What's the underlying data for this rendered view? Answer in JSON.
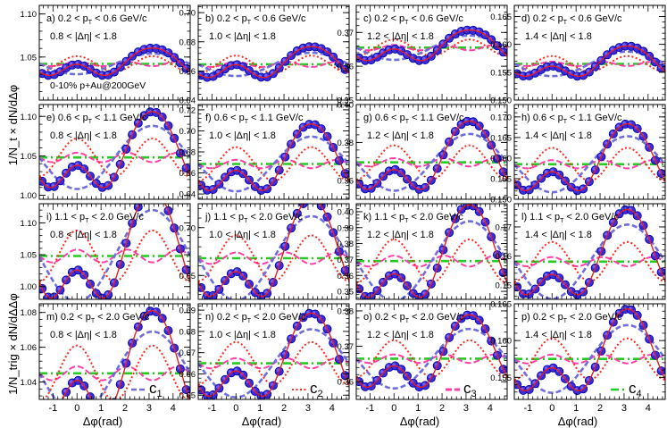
{
  "figure": {
    "ylabel_top": "1/N_t × dN/dΔφ",
    "ylabel_bottom": "1/N_trig × dN/dΔΔφ",
    "xlabel": "Δφ(rad)",
    "system_label": "0-10% p+Au@200GeV",
    "xticks": [
      -1,
      0,
      1,
      2,
      3,
      4
    ],
    "legend": [
      "c1",
      "c2",
      "c3",
      "c4"
    ],
    "colors": {
      "data": "#3a2cd6",
      "data_edge": "#0000aa",
      "data_fill_hi": "#6e63ff",
      "fit_total": "#ee1c1c",
      "c1": "#6f6ddc",
      "c2": "#ff2a1c",
      "c3": "#ff3ea8",
      "c4": "#22cc22"
    }
  },
  "chart_data": {
    "type": "scatter",
    "x_range": [
      -1.5708,
      4.7124
    ],
    "x": [
      -1.45,
      -1.2,
      -0.95,
      -0.7,
      -0.45,
      -0.2,
      0.05,
      0.3,
      0.55,
      0.8,
      1.05,
      1.3,
      1.55,
      1.8,
      2.05,
      2.3,
      2.55,
      2.8,
      3.05,
      3.3,
      3.55,
      3.8,
      4.05,
      4.3,
      4.55
    ],
    "rows": [
      {
        "pt_label": "0.2 < pT < 0.6 GeV/c"
      },
      {
        "pt_label": "0.6 < pT < 1.1 GeV/c"
      },
      {
        "pt_label": "1.1 < pT < 2.0 GeV/c"
      },
      {
        "pt_label": "0.2 < pT < 2.0 GeV/c"
      }
    ],
    "eta_labels": [
      "0.8 < |Δη| < 1.8",
      "1.0 < |Δη| < 1.8",
      "1.2 < |Δη| < 1.8",
      "1.4 < |Δη| < 1.8"
    ],
    "panels": [
      {
        "id": "a",
        "prefix": "a)",
        "pt_lo": "0.2",
        "pt_hi": "0.6",
        "eta": "0.8 < |Δη| < 1.8",
        "ylim": [
          1.0,
          1.11
        ],
        "yticks": [
          1.05,
          1.1
        ],
        "ytick_labels": [
          "1.05",
          "1.10"
        ],
        "b0": 1.042,
        "c1": -0.006,
        "c2": 0.0045,
        "c3": 0.0013
      },
      {
        "id": "b",
        "prefix": "b)",
        "pt_lo": "0.2",
        "pt_hi": "0.6",
        "eta": "1.0 < |Δη| < 1.8",
        "ylim": [
          0.64,
          0.705
        ],
        "yticks": [
          0.64,
          0.66,
          0.68,
          0.7
        ],
        "ytick_labels": [
          "0.64",
          "0.66",
          "0.68",
          "0.70"
        ],
        "b0": 0.6645,
        "c1": -0.004,
        "c2": 0.003,
        "c3": 0.0009
      },
      {
        "id": "c",
        "prefix": "c)",
        "pt_lo": "0.2",
        "pt_hi": "0.6",
        "eta": "1.2 < |Δη| < 1.8",
        "ylim": [
          0.35,
          0.378
        ],
        "yticks": [
          0.35,
          0.36,
          0.37
        ],
        "ytick_labels": [
          "0.35",
          "0.36",
          "0.37"
        ],
        "b0": 0.3655,
        "c1": -0.0018,
        "c2": 0.0012,
        "c3": 0.0004
      },
      {
        "id": "d",
        "prefix": "d)",
        "pt_lo": "0.2",
        "pt_hi": "0.6",
        "eta": "1.4 < |Δη| < 1.8",
        "ylim": [
          0.15,
          0.167
        ],
        "yticks": [
          0.15,
          0.155,
          0.16,
          0.165
        ],
        "ytick_labels": [
          "0.150",
          "0.155",
          "0.160",
          "0.165"
        ],
        "b0": 0.1565,
        "c1": -0.0011,
        "c2": 0.0007,
        "c3": 0.0002
      },
      {
        "id": "e",
        "prefix": "e)",
        "pt_lo": "0.6",
        "pt_hi": "1.1",
        "eta": "0.8 < |Δη| < 1.8",
        "ylim": [
          0.995,
          1.115
        ],
        "yticks": [
          1.0,
          1.05,
          1.1
        ],
        "ytick_labels": [
          "1.00",
          "1.05",
          "1.10"
        ],
        "b0": 1.048,
        "c1": -0.02,
        "c2": 0.012,
        "c3": 0.003
      },
      {
        "id": "f",
        "prefix": "f)",
        "pt_lo": "0.6",
        "pt_hi": "1.1",
        "eta": "1.0 < |Δη| < 1.8",
        "ylim": [
          0.635,
          0.725
        ],
        "yticks": [
          0.64,
          0.66,
          0.68,
          0.7,
          0.72
        ],
        "ytick_labels": [
          "0.64",
          "0.66",
          "0.68",
          "0.70",
          "0.72"
        ],
        "b0": 0.6685,
        "c1": -0.013,
        "c2": 0.008,
        "c3": 0.002
      },
      {
        "id": "g",
        "prefix": "g)",
        "pt_lo": "0.6",
        "pt_hi": "1.1",
        "eta": "1.2 < |Δη| < 1.8",
        "ylim": [
          0.35,
          0.4
        ],
        "yticks": [
          0.36,
          0.38,
          0.4
        ],
        "ytick_labels": [
          "0.36",
          "0.38",
          "0.40"
        ],
        "b0": 0.3695,
        "c1": -0.0075,
        "c2": 0.0045,
        "c3": 0.0011
      },
      {
        "id": "h",
        "prefix": "h)",
        "pt_lo": "0.6",
        "pt_hi": "1.1",
        "eta": "1.4 < |Δη| < 1.8",
        "ylim": [
          0.15,
          0.173
        ],
        "yticks": [
          0.15,
          0.155,
          0.16,
          0.165,
          0.17
        ],
        "ytick_labels": [
          "0.150",
          "0.155",
          "0.160",
          "0.165",
          "0.170"
        ],
        "b0": 0.1585,
        "c1": -0.0034,
        "c2": 0.002,
        "c3": 0.0005
      },
      {
        "id": "i",
        "prefix": "i)",
        "pt_lo": "1.1",
        "pt_hi": "2.0",
        "eta": "0.8 < |Δη| < 1.8",
        "ylim": [
          0.98,
          1.13
        ],
        "yticks": [
          1.0,
          1.05,
          1.1
        ],
        "ytick_labels": [
          "1.00",
          "1.05",
          "1.10"
        ],
        "b0": 1.048,
        "c1": -0.036,
        "c2": 0.02,
        "c3": 0.005
      },
      {
        "id": "j",
        "prefix": "j)",
        "pt_lo": "1.1",
        "pt_hi": "2.0",
        "eta": "1.0 < |Δη| < 1.8",
        "ylim": [
          0.625,
          0.725
        ],
        "yticks": [
          0.65,
          0.7
        ],
        "ytick_labels": [
          "0.65",
          "0.70"
        ],
        "b0": 0.668,
        "c1": -0.022,
        "c2": 0.012,
        "c3": 0.003
      },
      {
        "id": "k",
        "prefix": "k)",
        "pt_lo": "1.1",
        "pt_hi": "2.0",
        "eta": "1.2 < |Δη| < 1.8",
        "ylim": [
          0.345,
          0.405
        ],
        "yticks": [
          0.35,
          0.36,
          0.37,
          0.38,
          0.39,
          0.4
        ],
        "ytick_labels": [
          "0.35",
          "0.36",
          "0.37",
          "0.38",
          "0.39",
          "0.40"
        ],
        "b0": 0.369,
        "c1": -0.0125,
        "c2": 0.0068,
        "c3": 0.0017
      },
      {
        "id": "l",
        "prefix": "l)",
        "pt_lo": "1.1",
        "pt_hi": "2.0",
        "eta": "1.4 < |Δη| < 1.8",
        "ylim": [
          0.145,
          0.178
        ],
        "yticks": [
          0.15,
          0.16,
          0.17
        ],
        "ytick_labels": [
          "0.15",
          "0.16",
          "0.17"
        ],
        "b0": 0.158,
        "c1": -0.0064,
        "c2": 0.0034,
        "c3": 0.0008
      },
      {
        "id": "m",
        "prefix": "m)",
        "pt_lo": "0.2",
        "pt_hi": "2.0",
        "eta": "0.8 < |Δη| < 1.8",
        "ylim": [
          1.03,
          1.085
        ],
        "yticks": [
          1.04,
          1.06,
          1.08
        ],
        "ytick_labels": [
          "1.04",
          "1.06",
          "1.08"
        ],
        "b0": 1.045,
        "c1": -0.012,
        "c2": 0.008,
        "c3": 0.002
      },
      {
        "id": "n",
        "prefix": "n)",
        "pt_lo": "0.2",
        "pt_hi": "2.0",
        "eta": "1.0 < |Δη| < 1.8",
        "ylim": [
          0.648,
          0.693
        ],
        "yticks": [
          0.65,
          0.66,
          0.67,
          0.68,
          0.69
        ],
        "ytick_labels": [
          "0.65",
          "0.66",
          "0.67",
          "0.68",
          "0.69"
        ],
        "b0": 0.665,
        "c1": -0.008,
        "c2": 0.005,
        "c3": 0.0012
      },
      {
        "id": "o",
        "prefix": "o)",
        "pt_lo": "0.2",
        "pt_hi": "2.0",
        "eta": "1.2 < |Δη| < 1.8",
        "ylim": [
          0.355,
          0.382
        ],
        "yticks": [
          0.36,
          0.37,
          0.38
        ],
        "ytick_labels": [
          "0.36",
          "0.37",
          "0.38"
        ],
        "b0": 0.3665,
        "c1": -0.0042,
        "c2": 0.0026,
        "c3": 0.0006
      },
      {
        "id": "p",
        "prefix": "p)",
        "pt_lo": "0.2",
        "pt_hi": "2.0",
        "eta": "1.4 < |Δη| < 1.8",
        "ylim": [
          0.152,
          0.165
        ],
        "yticks": [
          0.155,
          0.16,
          0.165
        ],
        "ytick_labels": [
          "0.155",
          "0.160",
          "0.165"
        ],
        "b0": 0.1575,
        "c1": -0.0023,
        "c2": 0.0014,
        "c3": 0.0003
      }
    ]
  }
}
